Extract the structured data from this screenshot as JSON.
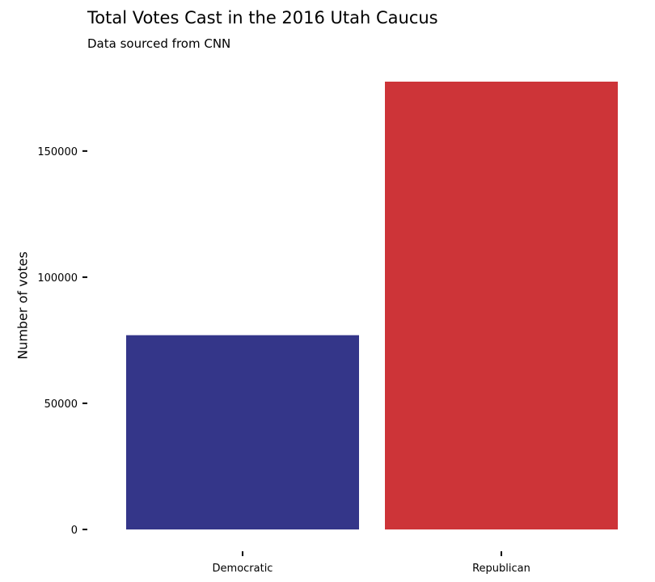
{
  "chart_data": {
    "type": "bar",
    "title": "Total Votes Cast in the 2016 Utah Caucus",
    "subtitle": "Data sourced from CNN",
    "xlabel": "",
    "ylabel": "Number of votes",
    "categories": [
      "Democratic",
      "Republican"
    ],
    "values": [
      77000,
      177500
    ],
    "colors": [
      "#343689",
      "#cd3438"
    ],
    "y_ticks": [
      0,
      50000,
      100000,
      150000
    ],
    "y_tick_labels": [
      "0",
      "50000",
      "100000",
      "150000"
    ],
    "ylim": [
      0,
      177500
    ],
    "grid": false,
    "legend": "none"
  }
}
